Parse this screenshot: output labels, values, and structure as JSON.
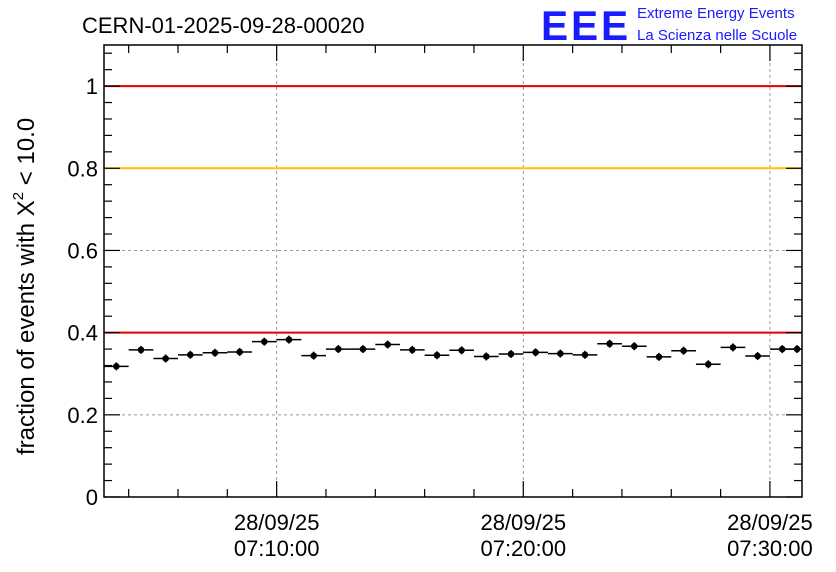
{
  "chart_data": {
    "type": "scatter",
    "title": "CERN-01-2025-09-28-00020",
    "ylabel_prefix": "fraction of events with ",
    "ylabel_symbol": "X",
    "ylabel_sup": "2",
    "ylabel_suffix": " < 10.0",
    "ylim": [
      0,
      1.1
    ],
    "y_ticks": [
      0,
      0.2,
      0.4,
      0.6,
      0.8,
      1
    ],
    "y_tick_labels": [
      "0",
      "0.2",
      "0.4",
      "0.6",
      "0.8",
      "1"
    ],
    "x_range_minutes": [
      3.0,
      31.3
    ],
    "x_ticks": [
      {
        "minute": 10,
        "date": "28/09/25",
        "time": "07:10:00"
      },
      {
        "minute": 20,
        "date": "28/09/25",
        "time": "07:20:00"
      },
      {
        "minute": 30,
        "date": "28/09/25",
        "time": "07:30:00"
      }
    ],
    "bin_width_minutes": 1,
    "series": [
      {
        "name": "fraction",
        "x_minutes": [
          3.5,
          4.5,
          5.5,
          6.5,
          7.5,
          8.5,
          9.5,
          10.5,
          11.5,
          12.5,
          13.5,
          14.5,
          15.5,
          16.5,
          17.5,
          18.5,
          19.5,
          20.5,
          21.5,
          22.5,
          23.5,
          24.5,
          25.5,
          26.5,
          27.5,
          28.5,
          29.5,
          30.5,
          31.1
        ],
        "values": [
          0.318,
          0.358,
          0.337,
          0.346,
          0.351,
          0.353,
          0.378,
          0.383,
          0.344,
          0.36,
          0.36,
          0.371,
          0.358,
          0.345,
          0.357,
          0.342,
          0.348,
          0.352,
          0.349,
          0.346,
          0.373,
          0.367,
          0.341,
          0.356,
          0.323,
          0.364,
          0.343,
          0.36,
          0.36
        ]
      }
    ],
    "reference_lines": [
      {
        "value": 1.0,
        "color": "#e00000"
      },
      {
        "value": 0.8,
        "color": "#ffc000"
      },
      {
        "value": 0.4,
        "color": "#e00000"
      }
    ]
  },
  "logo": {
    "mark": "EEE",
    "line1": "Extreme Energy Events",
    "line2": "La Scienza nelle Scuole",
    "color": "#1a1aff"
  }
}
